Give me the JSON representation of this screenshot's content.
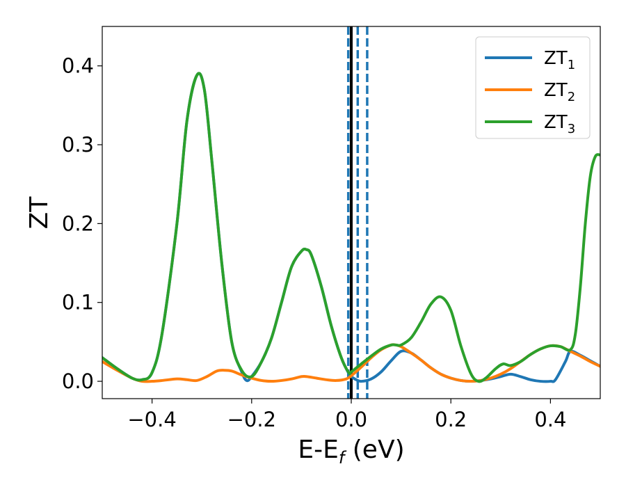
{
  "chart_data": {
    "type": "line",
    "title": "",
    "xlabel": "E-E",
    "xlabel_sub": "f",
    "xlabel_unit": " (eV)",
    "ylabel": "ZT",
    "xlim": [
      -0.5,
      0.5
    ],
    "ylim": [
      -0.022,
      0.45
    ],
    "xticks": [
      -0.4,
      -0.2,
      0.0,
      0.2,
      0.4
    ],
    "xtick_labels": [
      "−0.4",
      "−0.2",
      "0.0",
      "0.2",
      "0.4"
    ],
    "yticks": [
      0.0,
      0.1,
      0.2,
      0.3,
      0.4
    ],
    "ytick_labels": [
      "0.0",
      "0.1",
      "0.2",
      "0.3",
      "0.4"
    ],
    "grid": false,
    "legend_position": "top-right",
    "reference_lines": [
      {
        "x": 0.0,
        "style": "solid",
        "color": "#000000"
      },
      {
        "x": -0.006,
        "style": "dashed",
        "color": "#1f77b4"
      },
      {
        "x": 0.013,
        "style": "dashed",
        "color": "#1f77b4"
      },
      {
        "x": 0.032,
        "style": "dashed",
        "color": "#1f77b4"
      }
    ],
    "series": [
      {
        "name": "ZT",
        "name_sub": "1",
        "color": "#1f77b4",
        "points": [
          [
            -0.5,
            0.03
          ],
          [
            -0.47,
            0.016
          ],
          [
            -0.44,
            0.004
          ],
          [
            -0.42,
            0.002
          ],
          [
            -0.4,
            0.011
          ],
          [
            -0.38,
            0.06
          ],
          [
            -0.35,
            0.2
          ],
          [
            -0.33,
            0.33
          ],
          [
            -0.31,
            0.388
          ],
          [
            -0.295,
            0.37
          ],
          [
            -0.28,
            0.28
          ],
          [
            -0.26,
            0.15
          ],
          [
            -0.24,
            0.05
          ],
          [
            -0.22,
            0.012
          ],
          [
            -0.21,
            0.001
          ],
          [
            -0.2,
            0.006
          ],
          [
            -0.18,
            0.025
          ],
          [
            -0.16,
            0.055
          ],
          [
            -0.14,
            0.1
          ],
          [
            -0.12,
            0.145
          ],
          [
            -0.1,
            0.165
          ],
          [
            -0.09,
            0.167
          ],
          [
            -0.08,
            0.16
          ],
          [
            -0.06,
            0.12
          ],
          [
            -0.04,
            0.07
          ],
          [
            -0.02,
            0.03
          ],
          [
            -0.005,
            0.01
          ],
          [
            0.0,
            0.006
          ],
          [
            0.01,
            0.002
          ],
          [
            0.02,
            0.0
          ],
          [
            0.04,
            0.003
          ],
          [
            0.06,
            0.012
          ],
          [
            0.08,
            0.026
          ],
          [
            0.1,
            0.038
          ],
          [
            0.12,
            0.036
          ],
          [
            0.14,
            0.027
          ],
          [
            0.16,
            0.017
          ],
          [
            0.18,
            0.009
          ],
          [
            0.2,
            0.004
          ],
          [
            0.22,
            0.001
          ],
          [
            0.24,
            0.0
          ],
          [
            0.26,
            0.001
          ],
          [
            0.28,
            0.003
          ],
          [
            0.3,
            0.006
          ],
          [
            0.32,
            0.009
          ],
          [
            0.34,
            0.006
          ],
          [
            0.36,
            0.002
          ],
          [
            0.38,
            0.0
          ],
          [
            0.4,
            0.0
          ],
          [
            0.41,
            0.002
          ],
          [
            0.43,
            0.025
          ],
          [
            0.44,
            0.038
          ],
          [
            0.46,
            0.033
          ],
          [
            0.48,
            0.026
          ],
          [
            0.5,
            0.019
          ]
        ]
      },
      {
        "name": "ZT",
        "name_sub": "2",
        "color": "#ff7f0e",
        "points": [
          [
            -0.5,
            0.025
          ],
          [
            -0.47,
            0.014
          ],
          [
            -0.44,
            0.004
          ],
          [
            -0.42,
            0.0
          ],
          [
            -0.4,
            0.0
          ],
          [
            -0.38,
            0.001
          ],
          [
            -0.35,
            0.003
          ],
          [
            -0.33,
            0.002
          ],
          [
            -0.31,
            0.001
          ],
          [
            -0.29,
            0.006
          ],
          [
            -0.27,
            0.013
          ],
          [
            -0.255,
            0.014
          ],
          [
            -0.24,
            0.013
          ],
          [
            -0.22,
            0.008
          ],
          [
            -0.2,
            0.004
          ],
          [
            -0.18,
            0.001
          ],
          [
            -0.16,
            0.0
          ],
          [
            -0.14,
            0.001
          ],
          [
            -0.12,
            0.003
          ],
          [
            -0.1,
            0.006
          ],
          [
            -0.09,
            0.006
          ],
          [
            -0.07,
            0.004
          ],
          [
            -0.05,
            0.002
          ],
          [
            -0.03,
            0.001
          ],
          [
            -0.01,
            0.003
          ],
          [
            0.0,
            0.007
          ],
          [
            0.02,
            0.018
          ],
          [
            0.04,
            0.03
          ],
          [
            0.06,
            0.04
          ],
          [
            0.08,
            0.046
          ],
          [
            0.09,
            0.046
          ],
          [
            0.1,
            0.044
          ],
          [
            0.12,
            0.036
          ],
          [
            0.14,
            0.027
          ],
          [
            0.16,
            0.017
          ],
          [
            0.18,
            0.009
          ],
          [
            0.2,
            0.004
          ],
          [
            0.22,
            0.001
          ],
          [
            0.24,
            0.0
          ],
          [
            0.26,
            0.001
          ],
          [
            0.28,
            0.004
          ],
          [
            0.3,
            0.009
          ],
          [
            0.32,
            0.016
          ],
          [
            0.34,
            0.025
          ],
          [
            0.36,
            0.034
          ],
          [
            0.38,
            0.041
          ],
          [
            0.4,
            0.045
          ],
          [
            0.42,
            0.044
          ],
          [
            0.44,
            0.038
          ],
          [
            0.46,
            0.032
          ],
          [
            0.48,
            0.025
          ],
          [
            0.5,
            0.019
          ]
        ]
      },
      {
        "name": "ZT",
        "name_sub": "3",
        "color": "#2ca02c",
        "points": [
          [
            -0.5,
            0.03
          ],
          [
            -0.47,
            0.016
          ],
          [
            -0.44,
            0.004
          ],
          [
            -0.42,
            0.002
          ],
          [
            -0.4,
            0.011
          ],
          [
            -0.38,
            0.06
          ],
          [
            -0.35,
            0.2
          ],
          [
            -0.33,
            0.33
          ],
          [
            -0.31,
            0.388
          ],
          [
            -0.295,
            0.37
          ],
          [
            -0.28,
            0.28
          ],
          [
            -0.26,
            0.15
          ],
          [
            -0.24,
            0.05
          ],
          [
            -0.22,
            0.014
          ],
          [
            -0.2,
            0.006
          ],
          [
            -0.18,
            0.025
          ],
          [
            -0.16,
            0.055
          ],
          [
            -0.14,
            0.1
          ],
          [
            -0.12,
            0.145
          ],
          [
            -0.1,
            0.165
          ],
          [
            -0.09,
            0.167
          ],
          [
            -0.08,
            0.16
          ],
          [
            -0.06,
            0.12
          ],
          [
            -0.04,
            0.07
          ],
          [
            -0.02,
            0.03
          ],
          [
            -0.005,
            0.011
          ],
          [
            0.0,
            0.012
          ],
          [
            0.02,
            0.022
          ],
          [
            0.04,
            0.032
          ],
          [
            0.06,
            0.041
          ],
          [
            0.08,
            0.046
          ],
          [
            0.09,
            0.046
          ],
          [
            0.1,
            0.046
          ],
          [
            0.12,
            0.055
          ],
          [
            0.14,
            0.075
          ],
          [
            0.16,
            0.098
          ],
          [
            0.18,
            0.107
          ],
          [
            0.2,
            0.09
          ],
          [
            0.22,
            0.045
          ],
          [
            0.24,
            0.01
          ],
          [
            0.255,
            0.0
          ],
          [
            0.27,
            0.004
          ],
          [
            0.29,
            0.016
          ],
          [
            0.305,
            0.022
          ],
          [
            0.32,
            0.02
          ],
          [
            0.34,
            0.025
          ],
          [
            0.36,
            0.034
          ],
          [
            0.38,
            0.041
          ],
          [
            0.4,
            0.045
          ],
          [
            0.42,
            0.044
          ],
          [
            0.44,
            0.04
          ],
          [
            0.45,
            0.06
          ],
          [
            0.46,
            0.12
          ],
          [
            0.47,
            0.2
          ],
          [
            0.48,
            0.26
          ],
          [
            0.49,
            0.285
          ],
          [
            0.5,
            0.287
          ]
        ]
      }
    ]
  }
}
